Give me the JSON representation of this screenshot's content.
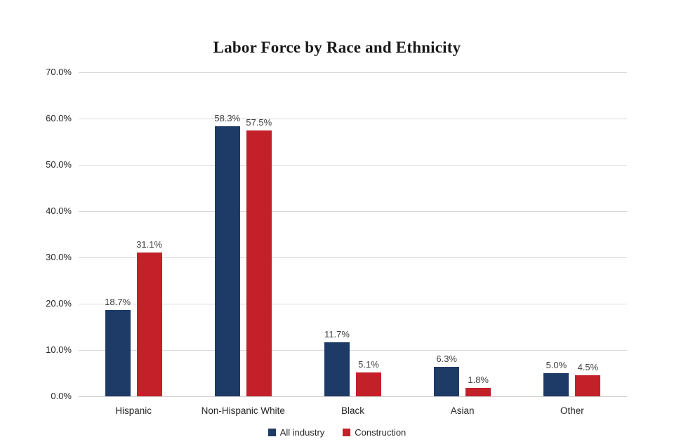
{
  "chart_data": {
    "type": "bar",
    "title": "Labor Force by Race and Ethnicity",
    "categories": [
      "Hispanic",
      "Non-Hispanic White",
      "Black",
      "Asian",
      "Other"
    ],
    "series": [
      {
        "name": "All industry",
        "color": "#1E3A66",
        "values": [
          18.7,
          58.3,
          11.7,
          6.3,
          5.0
        ],
        "labels": [
          "18.7%",
          "58.3%",
          "11.7%",
          "6.3%",
          "5.0%"
        ]
      },
      {
        "name": "Construction",
        "color": "#C3202A",
        "values": [
          31.1,
          57.5,
          5.1,
          1.8,
          4.5
        ],
        "labels": [
          "31.1%",
          "57.5%",
          "5.1%",
          "1.8%",
          "4.5%"
        ]
      }
    ],
    "ylim": [
      0,
      70
    ],
    "yticks": [
      {
        "value": 0,
        "label": "0.0%"
      },
      {
        "value": 10,
        "label": "10.0%"
      },
      {
        "value": 20,
        "label": "20.0%"
      },
      {
        "value": 30,
        "label": "30.0%"
      },
      {
        "value": 40,
        "label": "40.0%"
      },
      {
        "value": 50,
        "label": "50.0%"
      },
      {
        "value": 60,
        "label": "60.0%"
      },
      {
        "value": 70,
        "label": "70.0%"
      }
    ],
    "grid": true,
    "legend_position": "bottom",
    "colors": {
      "gridline": "#D9D9D9",
      "axis_line": "#CFCFCF",
      "title_text": "#191919",
      "tick_text": "#262626",
      "data_label_text": "#404040",
      "background": "#FFFFFF"
    }
  }
}
